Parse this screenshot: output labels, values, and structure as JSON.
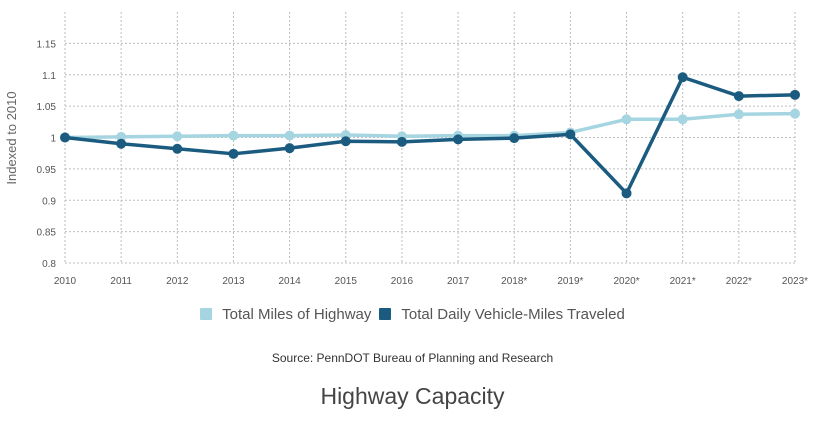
{
  "chart_data": {
    "type": "line",
    "title": "Highway Capacity",
    "source": "Source: PennDOT Bureau of Planning and Research",
    "ylabel": "Indexed to 2010",
    "xlabel": "",
    "ylim": [
      0.8,
      1.2
    ],
    "yticks": [
      "0.8",
      "0.85",
      "0.9",
      "0.95",
      "1",
      "1.05",
      "1.1",
      "1.15"
    ],
    "categories": [
      "2010",
      "2011",
      "2012",
      "2013",
      "2014",
      "2015",
      "2016",
      "2017",
      "2018*",
      "2019*",
      "2020*",
      "2021*",
      "2022*",
      "2023*"
    ],
    "grid": true,
    "legend_position": "bottom",
    "series": [
      {
        "name": "Total Miles of Highway",
        "color": "#a5d5e0",
        "values": [
          1.0,
          1.001,
          1.002,
          1.003,
          1.003,
          1.004,
          1.002,
          1.003,
          1.003,
          1.008,
          1.029,
          1.029,
          1.037,
          1.038
        ]
      },
      {
        "name": "Total Daily Vehicle-Miles Traveled",
        "color": "#1b5b80",
        "values": [
          1.0,
          0.99,
          0.982,
          0.974,
          0.983,
          0.994,
          0.993,
          0.997,
          0.999,
          1.005,
          0.911,
          1.096,
          1.066,
          1.068
        ]
      }
    ]
  }
}
